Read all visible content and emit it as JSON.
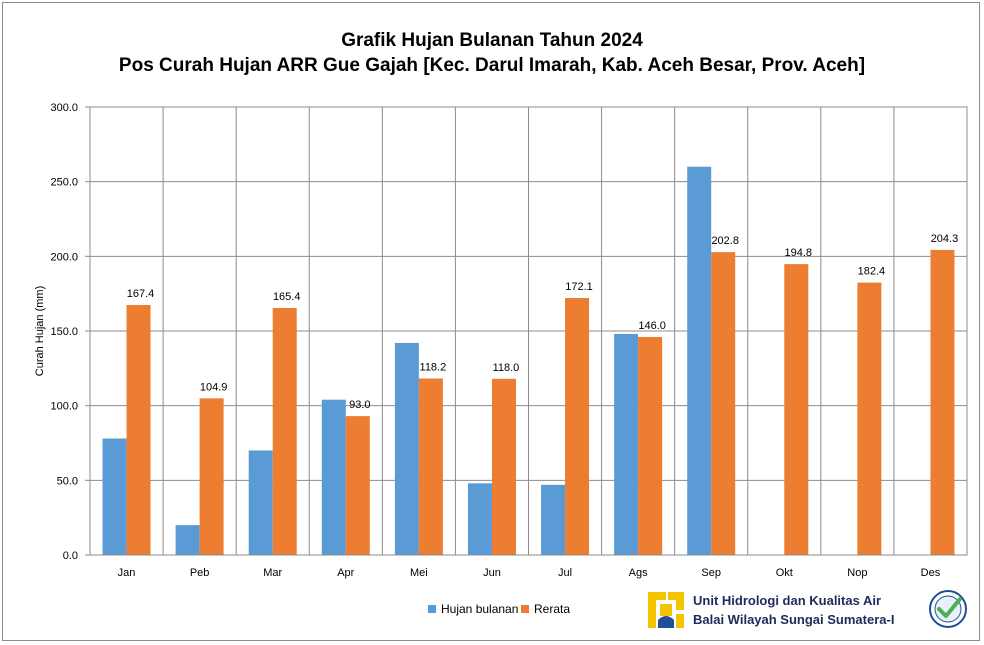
{
  "chart_data": {
    "type": "bar",
    "title": "Grafik Hujan Bulanan Tahun 2024",
    "subtitle": "Pos Curah Hujan ARR Gue Gajah [Kec. Darul Imarah, Kab. Aceh Besar, Prov. Aceh]",
    "ylabel": "Curah Hujan (mm)",
    "xlabel": "",
    "ylim": [
      0,
      300
    ],
    "yticks": [
      "0.0",
      "50.0",
      "100.0",
      "150.0",
      "200.0",
      "250.0",
      "300.0"
    ],
    "grid": true,
    "legend_position": "bottom",
    "categories": [
      "Jan",
      "Peb",
      "Mar",
      "Apr",
      "Mei",
      "Jun",
      "Jul",
      "Ags",
      "Sep",
      "Okt",
      "Nop",
      "Des"
    ],
    "series": [
      {
        "name": "Hujan bulanan",
        "color": "#5b9bd5",
        "values": [
          78,
          20,
          70,
          104,
          142,
          48,
          47,
          148,
          260,
          null,
          null,
          null
        ],
        "labels": []
      },
      {
        "name": "Rerata",
        "color": "#ed7d31",
        "values": [
          167.4,
          104.9,
          165.4,
          93.0,
          118.2,
          118.0,
          172.1,
          146.0,
          202.8,
          194.8,
          182.4,
          204.3
        ],
        "labels": [
          "167.4",
          "104.9",
          "165.4",
          "93.0",
          "118.2",
          "118.0",
          "172.1",
          "146.0",
          "202.8",
          "194.8",
          "182.4",
          "204.3"
        ]
      }
    ]
  },
  "organization": {
    "line1": "Unit Hidrologi dan Kualitas Air",
    "line2": "Balai Wilayah Sungai Sumatera-I",
    "logo_icon": "pu-logo-icon",
    "badge_icon": "iso-certified-badge-icon",
    "brand_yellow": "#f5c400",
    "brand_blue": "#1f4e9a",
    "badge_green": "#4caf50"
  }
}
